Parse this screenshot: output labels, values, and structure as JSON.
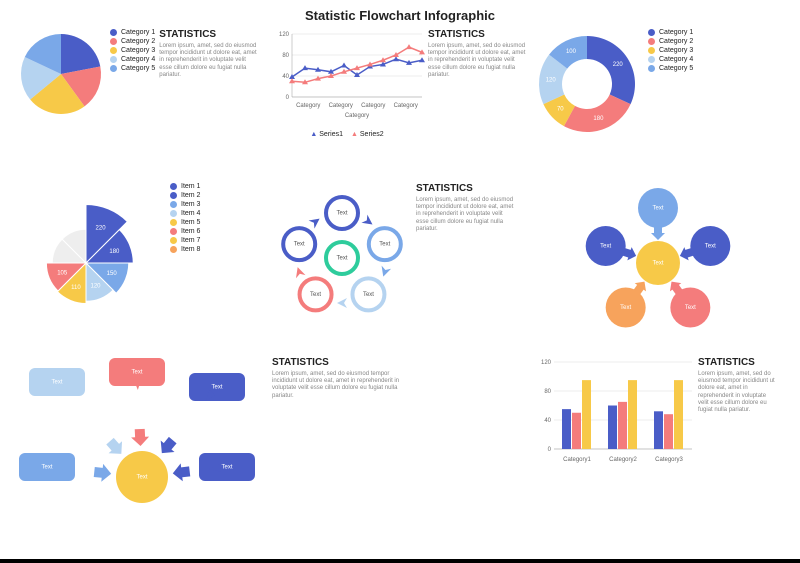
{
  "title": "Statistic Flowchart Infographic",
  "colors": {
    "blue": "#4a5dc7",
    "red": "#f47c7c",
    "yellow": "#f7c948",
    "lightblue": "#b5d3f0",
    "skyblue": "#7aa8e8",
    "teal": "#2ecc9c",
    "orange": "#f7a35c",
    "grey": "#cccccc"
  },
  "stats_block": {
    "title": "STATISTICS",
    "text": "Lorem ipsum, amet, sed do eiusmod tempor incididunt ut dolore eat, amet in reprehenderit in voluptate velit esse cillum dolore eu fugiat nulla pariatur."
  },
  "pie1": {
    "slices": [
      {
        "label": "Category 1",
        "value": 22,
        "color": "#4a5dc7"
      },
      {
        "label": "Category 2",
        "value": 18,
        "color": "#f47c7c"
      },
      {
        "label": "Category 3",
        "value": 24,
        "color": "#f7c948"
      },
      {
        "label": "Category 4",
        "value": 18,
        "color": "#b5d3f0"
      },
      {
        "label": "Category 5",
        "value": 18,
        "color": "#7aa8e8"
      }
    ]
  },
  "linechart": {
    "title": "STATISTICS",
    "xlabels": [
      "Category",
      "Category",
      "Category",
      "Category"
    ],
    "ylim": [
      0,
      120
    ],
    "ytick": 40,
    "series": [
      {
        "name": "Series1",
        "color": "#4a5dc7",
        "points": [
          38,
          55,
          52,
          48,
          60,
          42,
          58,
          62,
          72,
          65,
          70
        ]
      },
      {
        "name": "Series2",
        "color": "#f47c7c",
        "points": [
          30,
          28,
          35,
          40,
          48,
          55,
          62,
          70,
          80,
          95,
          85
        ]
      }
    ]
  },
  "donut": {
    "slices": [
      {
        "label": "Category 1",
        "value": 220,
        "color": "#4a5dc7",
        "text": "220"
      },
      {
        "label": "Category 2",
        "value": 180,
        "color": "#f47c7c",
        "text": "180"
      },
      {
        "label": "Category 3",
        "value": 70,
        "color": "#f7c948",
        "text": "70"
      },
      {
        "label": "Category 4",
        "value": 120,
        "color": "#b5d3f0",
        "text": "120"
      },
      {
        "label": "Category 5",
        "value": 100,
        "color": "#7aa8e8",
        "text": "100"
      }
    ]
  },
  "wheel": {
    "slices": [
      {
        "label": "220",
        "color": "#4a5dc7",
        "r": 1.3
      },
      {
        "label": "180",
        "color": "#4a5dc7",
        "r": 1.05
      },
      {
        "label": "150",
        "color": "#7aa8e8",
        "r": 0.95
      },
      {
        "label": "120",
        "color": "#b5d3f0",
        "r": 0.85
      },
      {
        "label": "110",
        "color": "#f7c948",
        "r": 0.9
      },
      {
        "label": "105",
        "color": "#f47c7c",
        "r": 0.88
      },
      {
        "label": "",
        "color": "#eeeeee",
        "r": 0.75
      },
      {
        "label": "",
        "color": "#eeeeee",
        "r": 0.75
      }
    ],
    "legend": [
      "Item 1",
      "Item 2",
      "Item 3",
      "Item 4",
      "Item 5",
      "Item 6",
      "Item 7",
      "Item 8"
    ],
    "legend_colors": [
      "#4a5dc7",
      "#4a5dc7",
      "#7aa8e8",
      "#b5d3f0",
      "#f7c948",
      "#f47c7c",
      "#f7c948",
      "#f7a35c"
    ]
  },
  "ringcycle": {
    "nodes": [
      {
        "label": "Text",
        "color": "#4a5dc7"
      },
      {
        "label": "Text",
        "color": "#7aa8e8"
      },
      {
        "label": "Text",
        "color": "#b5d3f0"
      },
      {
        "label": "Text",
        "color": "#f47c7c"
      },
      {
        "label": "Text",
        "color": "#4a5dc7"
      }
    ],
    "center": {
      "label": "Text",
      "color": "#2ecc9c"
    }
  },
  "bubblecycle": {
    "nodes": [
      {
        "label": "Text",
        "color": "#7aa8e8"
      },
      {
        "label": "Text",
        "color": "#4a5dc7"
      },
      {
        "label": "Text",
        "color": "#f47c7c"
      },
      {
        "label": "Text",
        "color": "#f7a35c"
      },
      {
        "label": "Text",
        "color": "#4a5dc7"
      }
    ],
    "center": {
      "label": "Text",
      "color": "#f7c948"
    }
  },
  "speechflow": {
    "boxes": [
      {
        "label": "Text",
        "color": "#b5d3f0"
      },
      {
        "label": "Text",
        "color": "#f47c7c"
      },
      {
        "label": "Text",
        "color": "#4a5dc7"
      },
      {
        "label": "Text",
        "color": "#7aa8e8"
      },
      {
        "label": "Text",
        "color": "#4a5dc7"
      }
    ],
    "center": {
      "label": "Text",
      "color": "#f7c948"
    }
  },
  "barchart": {
    "ylim": [
      0,
      120
    ],
    "ytick": 40,
    "categories": [
      "Category1",
      "Category2",
      "Category3"
    ],
    "series": [
      {
        "color": "#4a5dc7",
        "values": [
          55,
          60,
          52
        ]
      },
      {
        "color": "#f47c7c",
        "values": [
          50,
          65,
          48
        ]
      },
      {
        "color": "#f7c948",
        "values": [
          95,
          95,
          95
        ]
      }
    ]
  }
}
